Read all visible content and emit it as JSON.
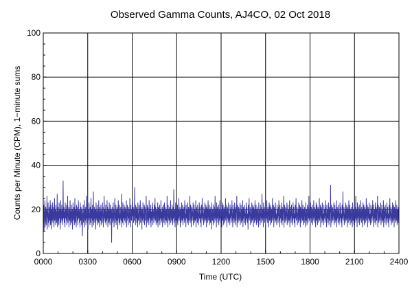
{
  "chart_data": {
    "type": "line",
    "title": "Observed Gamma Counts, AJ4CO, 02 Oct 2018",
    "xlabel": "Time (UTC)",
    "ylabel": "Counts per Minute (CPM), 1−minute sums",
    "x_tick_labels": [
      "0000",
      "0300",
      "0600",
      "0900",
      "1200",
      "1500",
      "1800",
      "2100",
      "2400"
    ],
    "y_tick_labels": [
      "0",
      "20",
      "40",
      "60",
      "80",
      "100"
    ],
    "xlim_hours": [
      0,
      24
    ],
    "ylim": [
      0,
      100
    ],
    "grid": true,
    "x_interval_minutes": 1,
    "series": [
      {
        "color": "#3a3a9e",
        "summary": {
          "mean": 17,
          "min": 5,
          "max": 33,
          "typical_range": [
            10,
            25
          ]
        },
        "values": [
          17,
          14,
          22,
          10,
          19,
          16,
          24,
          12,
          18,
          21,
          15,
          13,
          20,
          17,
          26,
          11,
          19,
          16,
          23,
          14,
          18,
          12,
          21,
          17,
          15,
          19,
          24,
          13,
          16,
          22,
          18,
          11,
          20,
          15,
          17,
          23,
          14,
          19,
          16,
          21,
          12,
          18,
          25,
          15,
          17,
          20,
          13,
          22,
          16,
          19,
          14,
          18,
          27,
          12,
          17,
          21,
          15,
          19,
          13,
          23,
          17,
          16,
          20,
          11,
          18,
          24,
          14,
          19,
          16,
          22,
          15,
          17,
          20,
          13,
          33,
          18,
          16,
          21,
          14,
          19,
          17,
          12,
          23,
          16,
          18,
          20,
          15,
          22,
          13,
          17,
          19,
          26,
          14,
          18,
          16,
          21,
          12,
          20,
          17,
          15,
          24,
          18,
          13,
          19,
          16,
          22,
          14,
          17,
          20,
          11,
          18,
          23,
          15,
          19,
          16,
          21,
          13,
          17,
          25,
          14,
          18,
          20,
          16,
          12,
          22,
          17,
          19,
          15,
          21,
          13,
          18,
          24,
          16,
          17,
          20,
          14,
          19,
          12,
          23,
          17,
          15,
          21,
          18,
          13,
          20,
          16,
          8,
          17,
          19,
          22,
          14,
          18,
          16,
          24,
          12,
          20,
          17,
          15,
          21,
          13,
          19,
          26,
          16,
          18,
          14,
          22,
          17,
          11,
          20,
          15,
          19,
          23,
          16,
          18,
          13,
          21,
          17,
          14,
          25,
          19,
          16,
          20,
          12,
          18,
          22,
          15,
          17,
          28,
          13,
          19,
          16,
          21,
          14,
          18,
          20,
          17,
          11,
          23,
          16,
          19,
          15,
          22,
          18,
          13,
          17,
          20,
          14,
          24,
          16,
          19,
          12,
          21,
          18,
          15,
          17,
          22,
          13,
          20,
          16,
          19,
          14,
          23,
          17,
          18,
          12,
          21,
          15,
          26,
          19,
          16,
          20,
          14,
          18,
          22,
          13,
          17,
          19,
          15,
          24,
          16,
          21,
          12,
          18,
          20,
          17,
          14,
          23,
          19,
          15,
          13,
          22,
          18,
          16,
          20,
          17,
          5,
          19,
          21,
          14,
          18,
          16,
          23,
          15,
          20,
          12,
          17,
          19,
          25,
          14,
          18,
          16,
          22,
          13,
          20,
          17,
          15,
          21,
          18,
          11,
          19,
          24,
          16,
          17,
          14,
          22,
          20,
          13,
          18,
          16,
          21,
          15,
          19,
          27,
          12,
          17,
          20,
          14,
          23,
          18,
          16,
          19,
          13,
          22,
          15,
          17,
          21,
          18,
          14,
          20,
          16,
          24,
          12,
          19,
          17,
          22,
          15,
          18,
          13,
          21,
          16,
          20,
          19,
          14,
          25,
          17,
          18,
          12,
          22,
          16,
          15,
          20,
          19,
          13,
          23,
          17,
          18,
          21,
          14,
          16,
          20,
          15,
          30,
          17,
          19,
          13,
          22,
          18,
          16,
          21,
          14,
          20,
          17,
          12,
          23,
          19,
          15,
          18,
          16,
          22,
          13,
          20,
          17,
          24,
          14,
          19,
          16,
          21,
          18,
          11,
          20,
          15,
          17,
          23,
          19,
          14,
          18,
          16,
          22,
          13,
          21,
          17,
          15,
          20,
          19,
          26,
          12,
          18,
          16,
          22,
          14,
          17,
          21,
          15,
          19,
          13,
          24,
          18,
          16,
          20,
          17,
          14,
          22,
          12,
          19,
          18,
          15,
          21,
          16,
          23,
          13,
          20,
          17,
          19,
          14,
          22,
          18,
          16,
          25,
          15,
          17,
          21,
          13,
          19,
          18,
          20,
          14,
          16,
          23,
          12,
          17,
          21,
          19,
          15,
          18,
          22,
          13,
          20,
          16,
          17,
          24,
          14,
          19,
          18,
          15,
          21,
          12,
          20,
          17,
          16,
          22,
          14,
          19,
          23,
          18,
          13,
          17,
          21,
          16,
          15,
          20,
          19,
          14,
          26,
          17,
          18,
          12,
          22,
          16,
          20,
          15,
          19,
          21,
          13,
          17,
          18,
          24,
          14,
          16,
          20,
          19,
          15,
          22,
          17,
          13,
          18,
          21,
          16,
          29,
          14,
          19,
          17,
          20,
          12,
          18,
          23,
          15,
          16,
          21,
          19,
          14,
          17,
          22,
          13,
          20,
          18,
          16,
          25,
          15,
          19,
          17,
          21,
          12,
          18,
          20,
          14,
          16,
          23,
          19,
          15,
          17,
          22,
          13,
          20,
          18,
          16,
          21,
          14,
          19,
          24,
          17,
          15,
          18,
          12,
          22,
          16,
          20,
          19,
          14,
          17,
          23,
          18,
          13,
          21,
          16,
          15,
          20,
          19,
          26,
          14,
          17,
          22,
          18,
          12,
          16,
          21,
          20,
          15,
          19,
          17,
          23,
          13,
          18,
          16,
          22,
          14,
          20,
          19,
          15,
          17,
          24,
          12,
          18,
          21,
          16,
          19,
          14,
          22,
          17,
          20,
          13,
          18,
          15,
          23,
          16,
          19,
          21,
          14,
          17,
          18,
          12,
          22,
          20,
          16,
          25,
          15,
          19,
          17,
          21,
          13,
          18,
          16,
          20,
          14,
          23,
          19,
          15,
          17,
          22,
          18,
          12,
          21,
          16,
          20,
          14,
          19,
          24,
          17,
          15,
          18,
          22,
          13,
          16,
          20,
          19,
          14,
          21,
          17,
          18,
          11,
          23,
          16,
          15,
          20,
          19,
          13,
          22,
          17,
          18,
          14,
          21,
          16,
          26,
          19,
          15,
          20,
          17,
          12,
          23,
          18,
          16,
          21,
          14,
          19,
          17,
          22,
          13,
          20,
          15,
          18,
          24,
          16,
          19,
          14,
          21,
          17,
          20,
          12,
          18,
          23,
          15,
          16,
          22,
          19,
          13,
          17,
          21,
          18,
          14,
          20,
          16,
          25,
          15,
          19,
          17,
          22,
          12,
          18,
          21,
          16,
          20,
          14,
          23,
          19,
          15,
          17,
          18,
          13,
          22,
          16,
          20,
          19,
          14,
          21,
          17,
          24,
          15,
          18,
          12,
          22,
          16,
          19,
          20,
          14,
          17,
          23,
          18,
          13,
          21,
          16,
          15,
          20,
          19,
          26,
          12,
          17,
          22,
          18,
          14,
          16,
          21,
          20,
          15,
          19,
          17,
          23,
          13,
          18,
          16,
          22,
          14,
          20,
          19,
          15,
          17,
          24,
          12,
          18,
          21,
          16,
          19,
          14,
          22,
          17,
          20,
          13,
          18,
          15,
          23,
          16,
          19,
          21,
          14,
          17,
          18,
          11,
          22,
          20,
          16,
          25,
          15,
          19,
          17,
          21,
          13,
          18,
          16,
          20,
          14,
          23,
          19,
          15,
          17,
          22,
          18,
          12,
          21,
          16,
          20,
          14,
          19,
          24,
          17,
          15,
          18,
          22,
          13,
          16,
          20,
          19,
          14,
          21,
          17,
          18,
          12,
          23,
          16,
          15,
          20,
          19,
          13,
          22,
          17,
          18,
          14,
          21,
          16,
          27,
          19,
          15,
          20,
          17,
          12,
          23,
          18,
          16,
          21,
          14,
          19,
          17,
          22,
          13,
          20,
          15,
          18,
          24,
          16,
          19,
          14,
          21,
          17,
          20,
          12,
          18,
          23,
          15,
          16,
          22,
          19,
          13,
          17,
          21,
          18,
          14,
          20,
          16,
          25,
          15,
          19,
          17,
          22,
          12,
          18,
          21,
          16,
          20,
          14,
          23,
          19,
          15,
          17,
          18,
          13,
          22,
          16,
          20,
          19,
          14,
          21,
          17,
          24,
          15,
          18,
          12,
          22,
          16,
          19,
          20,
          14,
          17,
          23,
          18,
          13,
          21,
          16,
          15,
          20,
          19,
          26,
          12,
          17,
          22,
          18,
          14,
          16,
          21,
          20,
          15,
          19,
          17,
          23,
          13,
          18,
          16,
          22,
          14,
          20,
          19,
          15,
          17,
          24,
          12,
          18,
          21,
          16,
          19,
          14,
          22,
          17,
          20,
          13,
          18,
          15,
          23,
          16,
          19,
          21,
          14,
          17,
          18,
          12,
          22,
          20,
          16,
          25,
          15,
          19,
          17,
          21,
          13,
          18,
          16,
          20,
          14,
          23,
          19,
          15,
          17,
          22,
          18,
          12,
          21,
          16,
          20,
          14,
          19,
          24,
          17,
          15,
          18,
          22,
          13,
          16,
          20,
          19,
          14,
          21,
          17,
          18,
          12,
          23,
          16,
          15,
          20,
          19,
          13,
          22,
          17,
          18,
          14,
          21,
          16,
          26,
          19,
          15,
          20,
          17,
          12,
          23,
          18,
          16,
          21,
          14,
          19,
          17,
          22,
          13,
          20,
          15,
          18,
          24,
          16,
          19,
          14,
          21,
          17,
          20,
          12,
          18,
          23,
          15,
          16,
          22,
          19,
          13,
          17,
          21,
          18,
          14,
          20,
          16,
          25,
          15,
          19,
          17,
          22,
          12,
          18,
          21,
          16,
          20,
          14,
          23,
          19,
          15,
          17,
          18,
          13,
          22,
          16,
          20,
          19,
          14,
          21,
          17,
          24,
          15,
          18,
          12,
          22,
          16,
          19,
          20,
          14,
          17,
          23,
          18,
          13,
          21,
          16,
          15,
          20,
          19,
          31,
          12,
          17,
          22,
          18,
          14,
          16,
          21,
          20,
          15,
          19,
          17,
          23,
          13,
          18,
          16,
          22,
          14,
          20,
          19,
          15,
          17,
          24,
          12,
          18,
          21,
          16,
          19,
          14,
          22,
          17,
          20,
          13,
          18,
          15,
          23,
          16,
          19,
          21,
          14,
          17,
          18,
          12,
          22,
          20,
          16,
          28,
          15,
          19,
          17,
          21,
          13,
          18,
          16,
          20,
          14,
          23,
          19,
          15,
          17,
          22,
          18,
          12,
          21,
          16,
          20,
          14,
          19,
          24,
          17,
          15,
          18,
          22,
          13,
          16,
          20,
          19,
          14,
          21,
          17,
          18,
          12,
          23,
          16,
          15,
          20,
          19,
          13,
          22,
          17,
          18,
          14,
          21,
          16,
          26,
          19,
          15,
          20,
          17,
          12,
          23,
          18,
          16,
          21,
          14,
          19,
          17,
          22,
          13,
          20,
          15,
          18,
          24,
          16,
          19,
          14,
          21,
          17,
          20,
          12,
          18,
          23,
          15,
          16,
          22,
          19,
          13,
          17,
          21,
          18,
          14,
          20,
          16,
          25,
          15,
          19,
          17,
          22,
          12,
          18,
          21,
          16,
          20,
          14,
          23,
          19,
          15,
          17,
          18,
          13,
          22,
          16,
          20,
          19,
          14,
          21,
          17,
          24,
          15,
          18,
          12,
          22,
          16,
          19,
          20,
          14,
          17,
          23,
          18,
          13,
          21,
          16,
          15,
          20,
          19,
          26,
          12,
          17,
          22,
          18,
          14,
          16,
          21,
          20,
          15,
          19,
          17,
          23,
          13,
          18,
          16,
          22,
          14,
          20,
          19,
          15,
          17,
          24,
          12,
          18,
          21,
          16,
          19,
          14,
          22,
          17,
          20,
          13,
          18,
          15,
          23,
          16,
          19,
          21,
          14,
          17,
          18,
          12,
          22,
          20,
          16,
          25,
          15,
          19,
          17,
          21,
          13,
          18,
          16,
          20,
          14,
          23,
          19,
          15,
          17,
          22,
          18,
          12,
          21,
          16,
          20,
          14,
          19,
          24,
          17,
          15,
          18,
          22,
          13,
          16,
          20,
          19,
          14,
          21,
          17,
          18
        ]
      }
    ]
  }
}
